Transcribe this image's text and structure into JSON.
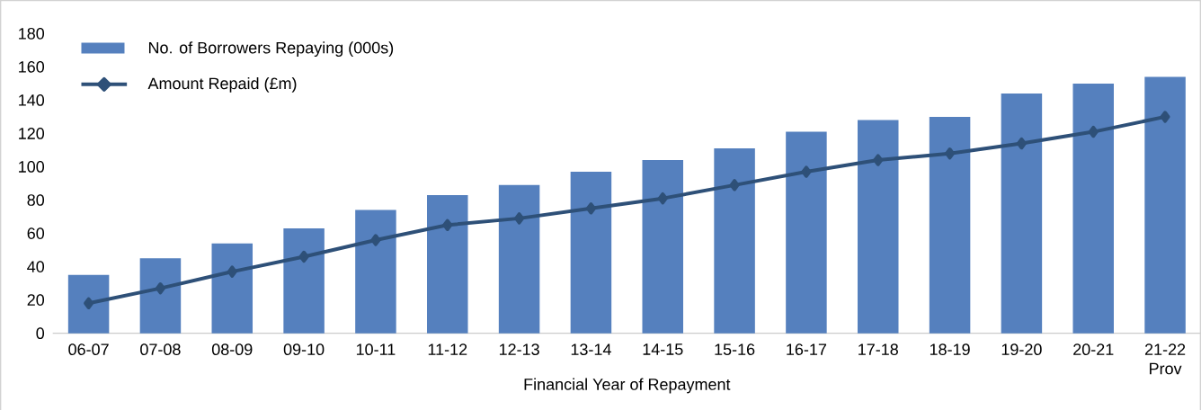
{
  "chart_data": {
    "type": "bar",
    "xlabel": "Financial Year of Repayment",
    "categories": [
      "06-07",
      "07-08",
      "08-09",
      "09-10",
      "10-11",
      "11-12",
      "12-13",
      "13-14",
      "14-15",
      "15-16",
      "16-17",
      "17-18",
      "18-19",
      "19-20",
      "20-21",
      "21-22 Prov"
    ],
    "series": [
      {
        "name": "No. of Borrowers Repaying (000s)",
        "color": "#5580be",
        "values": [
          35,
          45,
          54,
          63,
          74,
          83,
          89,
          97,
          104,
          111,
          121,
          128,
          130,
          144,
          150,
          154
        ]
      },
      {
        "name": "Amount Repaid (£m)",
        "type": "line",
        "color": "#2e5078",
        "marker": "diamond",
        "values": [
          18,
          27,
          37,
          46,
          56,
          65,
          69,
          75,
          81,
          89,
          97,
          104,
          108,
          114,
          121,
          130
        ]
      }
    ],
    "ylim": [
      0,
      180
    ],
    "yticks": [
      0,
      20,
      40,
      60,
      80,
      100,
      120,
      140,
      160,
      180
    ],
    "grid": false,
    "legend": "top left"
  }
}
